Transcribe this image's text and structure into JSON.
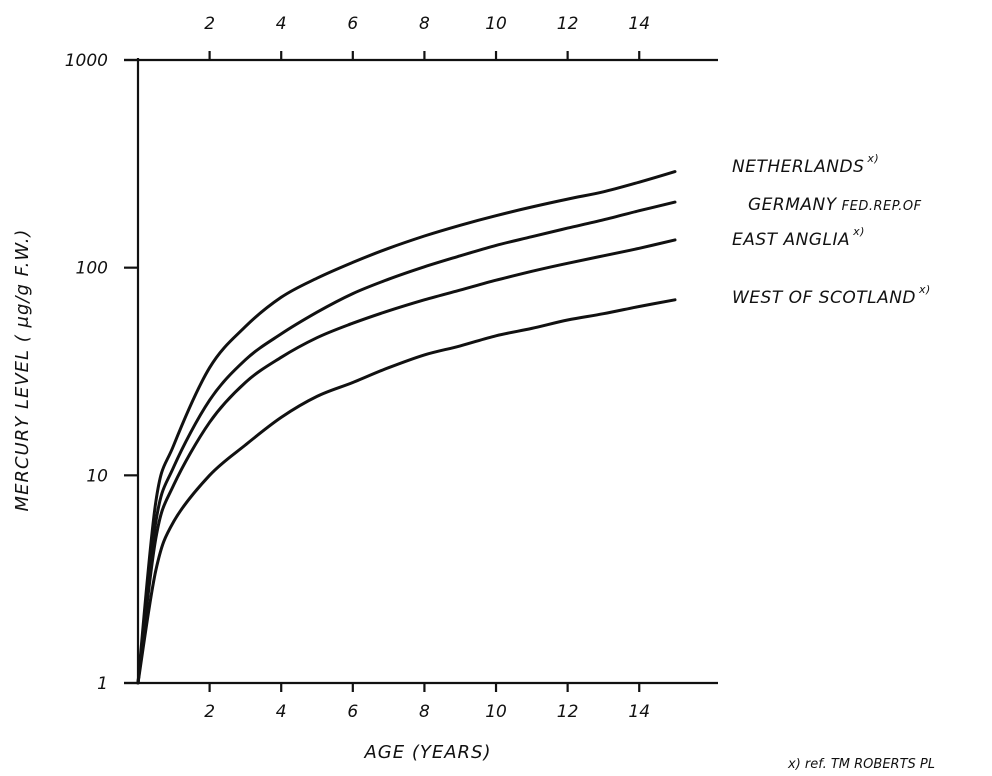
{
  "chart_data": {
    "type": "line",
    "xlabel": "AGE (YEARS)",
    "ylabel": "MERCURY LEVEL ( μg/g F.W.)",
    "x_ticks": [
      "2",
      "4",
      "6",
      "8",
      "10",
      "12",
      "14"
    ],
    "y_ticks": [
      "1",
      "10",
      "100",
      "1000"
    ],
    "y_scale": "log",
    "xlim": [
      0,
      15
    ],
    "ylim": [
      1,
      1000
    ],
    "grid": false,
    "legend": "labels at right end of curves",
    "series": [
      {
        "name": "NETHERLANDS",
        "sup": "x)",
        "sub": "",
        "x": [
          0,
          0.5,
          1,
          2,
          3,
          4,
          5,
          6,
          7,
          8,
          9,
          10,
          11,
          12,
          13,
          14,
          15
        ],
        "y": [
          1,
          7.5,
          14,
          33,
          52,
          72,
          89,
          106,
          124,
          142,
          160,
          178,
          196,
          214,
          232,
          258,
          290
        ]
      },
      {
        "name": "GERMANY",
        "sup": "",
        "sub": "FED.REP.OF",
        "x": [
          0,
          0.5,
          1,
          2,
          3,
          4,
          5,
          6,
          7,
          8,
          9,
          10,
          11,
          12,
          13,
          14,
          15
        ],
        "y": [
          1,
          6,
          11,
          23,
          36,
          48,
          61,
          75,
          88,
          101,
          114,
          128,
          141,
          155,
          170,
          188,
          207
        ]
      },
      {
        "name": "EAST ANGLIA",
        "sup": "x)",
        "sub": "",
        "x": [
          0,
          0.5,
          1,
          2,
          3,
          4,
          5,
          6,
          7,
          8,
          9,
          10,
          11,
          12,
          13,
          14,
          15
        ],
        "y": [
          1,
          5,
          9,
          18,
          28,
          37,
          46,
          54,
          62,
          70,
          78,
          87,
          96,
          105,
          114,
          124,
          136
        ]
      },
      {
        "name": "WEST OF SCOTLAND",
        "sup": "x)",
        "sub": "",
        "x": [
          0,
          0.5,
          1,
          2,
          3,
          4,
          5,
          6,
          7,
          8,
          9,
          10,
          11,
          12,
          13,
          14,
          15
        ],
        "y": [
          1,
          3.5,
          6,
          10,
          14,
          19,
          24,
          28,
          33,
          38,
          42,
          47,
          51,
          56,
          60,
          65,
          70
        ]
      }
    ],
    "footnote": "x) ref. TM ROBERTS  PL"
  }
}
